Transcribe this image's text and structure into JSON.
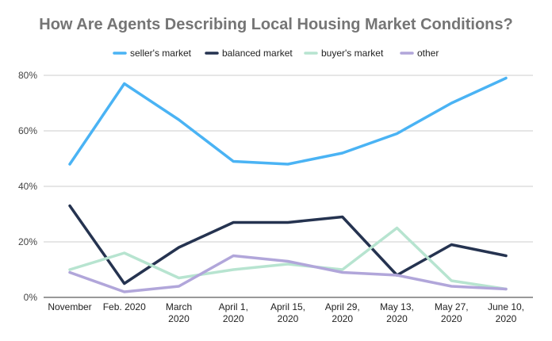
{
  "chart_data": {
    "type": "line",
    "title": "How Are Agents Describing Local Housing Market Conditions?",
    "xlabel": "",
    "ylabel": "",
    "categories": [
      [
        "November"
      ],
      [
        "Feb. 2020"
      ],
      [
        "March",
        "2020"
      ],
      [
        "April 1,",
        "2020"
      ],
      [
        "April 15,",
        "2020"
      ],
      [
        "April 29,",
        "2020"
      ],
      [
        "May 13,",
        "2020"
      ],
      [
        "May 27,",
        "2020"
      ],
      [
        "June 10,",
        "2020"
      ]
    ],
    "ylim": [
      0,
      80
    ],
    "yticks": [
      "0%",
      "20%",
      "40%",
      "60%",
      "80%"
    ],
    "grid": true,
    "legend_position": "top",
    "series": [
      {
        "name": "seller's market",
        "color": "#4AB3F4",
        "values": [
          48,
          77,
          64,
          49,
          48,
          52,
          59,
          70,
          79
        ]
      },
      {
        "name": "balanced market",
        "color": "#253350",
        "values": [
          33,
          5,
          18,
          27,
          27,
          29,
          8,
          19,
          15
        ]
      },
      {
        "name": "buyer's market",
        "color": "#B7E4D0",
        "values": [
          10,
          16,
          7,
          10,
          12,
          10,
          25,
          6,
          3
        ]
      },
      {
        "name": "other",
        "color": "#B1A6DA",
        "values": [
          9,
          2,
          4,
          15,
          13,
          9,
          8,
          4,
          3
        ]
      }
    ]
  }
}
